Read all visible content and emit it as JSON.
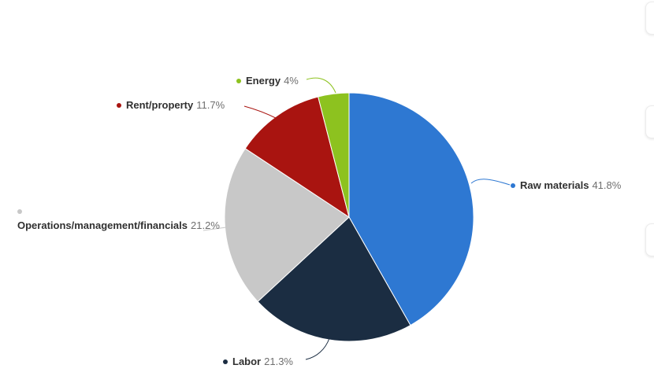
{
  "background_color": "#ffffff",
  "chart_data": {
    "type": "pie",
    "start_angle_deg": 0,
    "direction": "clockwise",
    "legend_position": "labels-with-leader-lines",
    "slices": [
      {
        "name": "Raw materials",
        "value": 41.8,
        "label": "41.8%",
        "color": "#2e78d2"
      },
      {
        "name": "Labor",
        "value": 21.3,
        "label": "21.3%",
        "color": "#1b2d42"
      },
      {
        "name": "Operations/management/financials",
        "value": 21.2,
        "label": "21.2%",
        "color": "#c8c8c8"
      },
      {
        "name": "Rent/property",
        "value": 11.7,
        "label": "11.7%",
        "color": "#a91410"
      },
      {
        "name": "Energy",
        "value": 4,
        "label": "4%",
        "color": "#8dc21f"
      }
    ]
  }
}
